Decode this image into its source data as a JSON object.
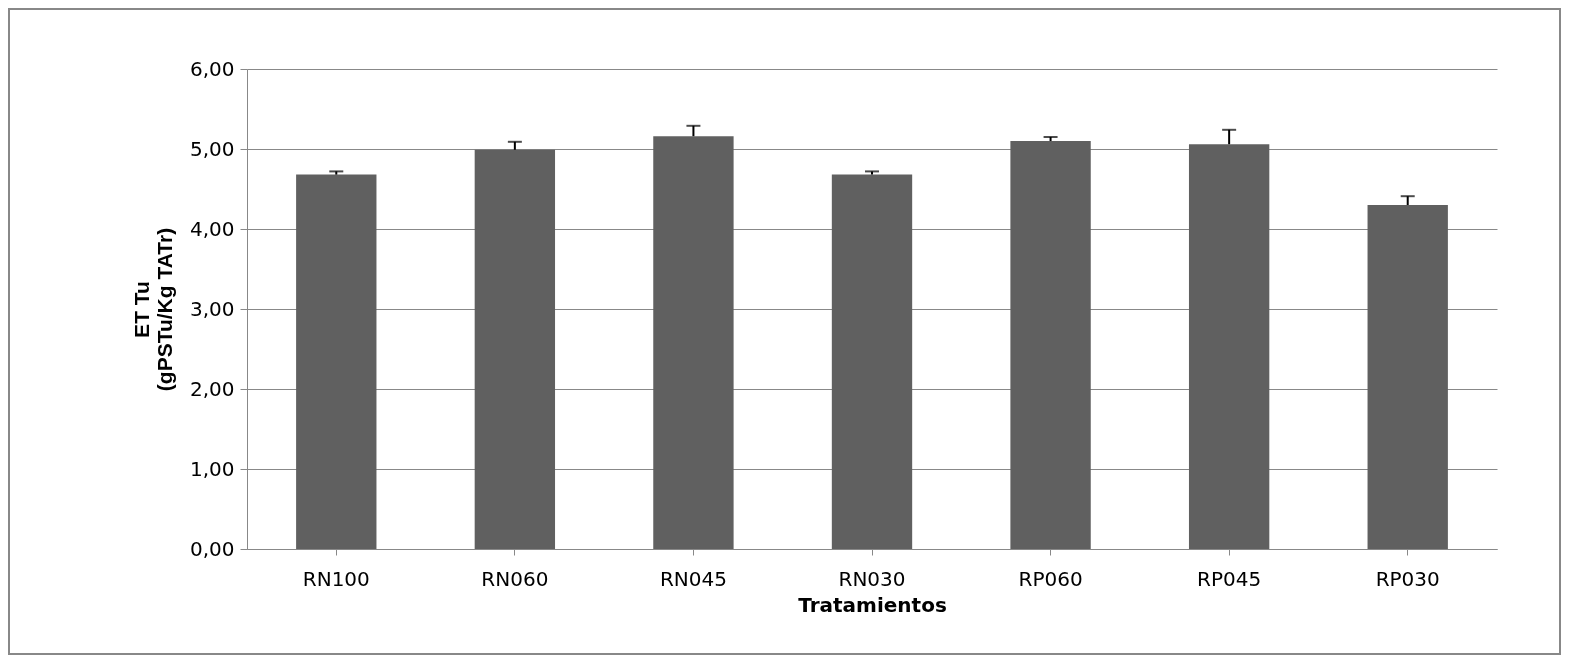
{
  "chart_data": {
    "type": "bar",
    "categories": [
      "RN100",
      "RN060",
      "RN045",
      "RN030",
      "RP060",
      "RP045",
      "RP030"
    ],
    "values": [
      4.68,
      4.99,
      5.16,
      4.68,
      5.1,
      5.06,
      4.3
    ],
    "errors": [
      [
        4.68,
        4.72
      ],
      [
        4.99,
        5.09
      ],
      [
        5.16,
        5.29
      ],
      [
        4.68,
        4.72
      ],
      [
        5.1,
        5.15
      ],
      [
        5.06,
        5.24
      ],
      [
        4.3,
        4.41
      ]
    ],
    "color": "#606060",
    "xlabel": "Tratamientos",
    "ylabel": "ET Tu\n(gPSTu/Kg TATr)",
    "ylim": [
      0,
      6
    ],
    "yticks": [
      {
        "value": 0,
        "label": "0,00"
      },
      {
        "value": 1,
        "label": "1,00"
      },
      {
        "value": 2,
        "label": "2,00"
      },
      {
        "value": 3,
        "label": "3,00"
      },
      {
        "value": 4,
        "label": "4,00"
      },
      {
        "value": 5,
        "label": "5,00"
      },
      {
        "value": 6,
        "label": "6,00"
      }
    ],
    "grid": "y"
  }
}
